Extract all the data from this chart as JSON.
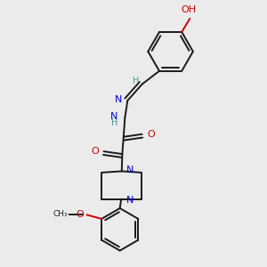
{
  "bg_color": "#ebebeb",
  "bond_color": "#1a1a1a",
  "nitrogen_color": "#0000cc",
  "oxygen_color": "#cc0000",
  "carbon_h_color": "#4a9a9a",
  "figsize": [
    3.0,
    3.0
  ],
  "dpi": 100,
  "xlim": [
    0,
    10
  ],
  "ylim": [
    0,
    10
  ]
}
